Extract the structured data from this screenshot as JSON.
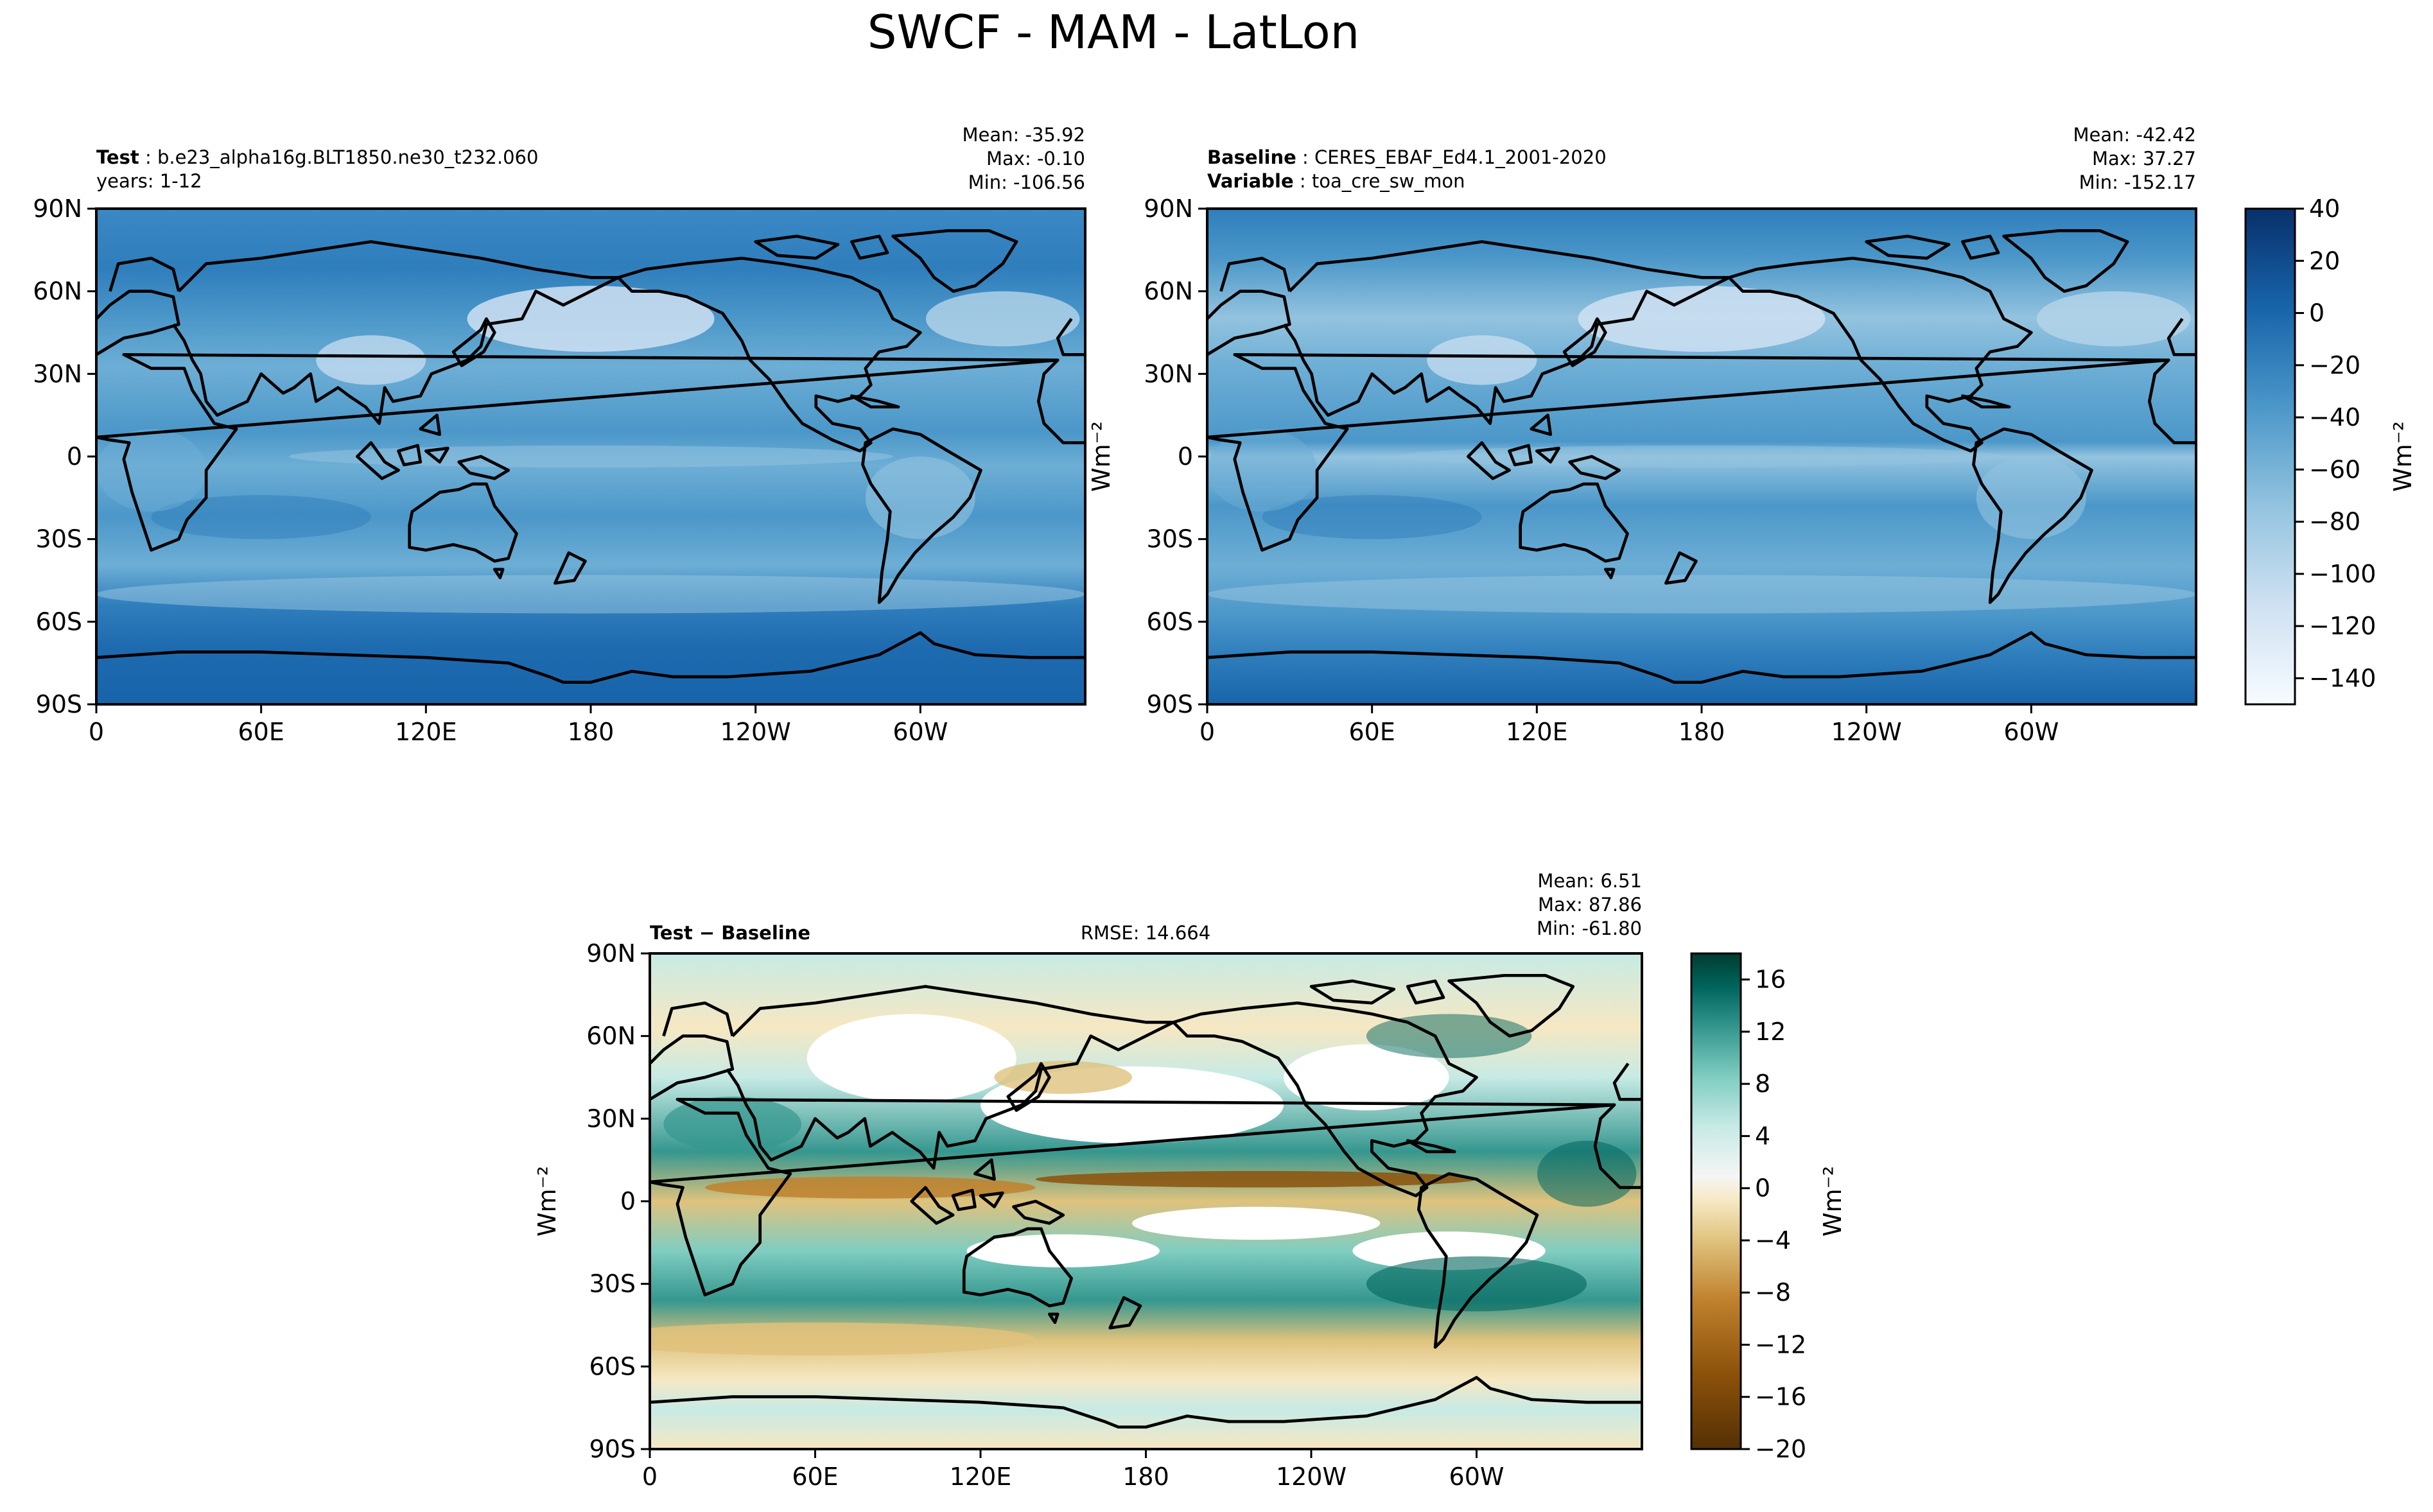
{
  "figure_title": "SWCF - MAM - LatLon",
  "colors": {
    "blues": [
      "#f7fbff",
      "#e3eef9",
      "#cfe1f2",
      "#b5d4e9",
      "#93c3df",
      "#6daed5",
      "#4b97c9",
      "#2f7ebc",
      "#1864aa",
      "#0a4a90",
      "#08306b"
    ],
    "diverging": [
      "#543005",
      "#8c510a",
      "#bf812d",
      "#dfc27d",
      "#f6e8c3",
      "#f5f5f5",
      "#c7eae5",
      "#80cdc1",
      "#35978f",
      "#01665e",
      "#003c30"
    ],
    "land_outline": "#000000"
  },
  "chart_data": [
    {
      "id": "test",
      "type": "heatmap",
      "subtitle_label": "Test",
      "subtitle_value": "b.e23_alpha16g.BLT1850.ne30_t232.060",
      "subtitle_line2": "years: 1-12",
      "stats": {
        "mean": "Mean: -35.92",
        "max": "Max: -0.10",
        "min": "Min: -106.56"
      },
      "xticks": [
        "0",
        "60E",
        "120E",
        "180",
        "120W",
        "60W"
      ],
      "yticks": [
        "90N",
        "60N",
        "30N",
        "0",
        "30S",
        "60S",
        "90S"
      ],
      "xlim": [
        0,
        360
      ],
      "ylim": [
        -90,
        90
      ],
      "units": "Wm⁻²"
    },
    {
      "id": "baseline",
      "type": "heatmap",
      "subtitle_label": "Baseline",
      "subtitle_value": "CERES_EBAF_Ed4.1_2001-2020",
      "subtitle_label2": "Variable",
      "subtitle_value2": "toa_cre_sw_mon",
      "stats": {
        "mean": "Mean: -42.42",
        "max": "Max: 37.27",
        "min": "Min: -152.17"
      },
      "xticks": [
        "0",
        "60E",
        "120E",
        "180",
        "120W",
        "60W"
      ],
      "yticks": [
        "90N",
        "60N",
        "30N",
        "0",
        "30S",
        "60S",
        "90S"
      ],
      "xlim": [
        0,
        360
      ],
      "ylim": [
        -90,
        90
      ],
      "ylabel": "Wm⁻²",
      "colorbar": {
        "ticks": [
          "40",
          "20",
          "0",
          "−20",
          "−40",
          "−60",
          "−80",
          "−100",
          "−120",
          "−140"
        ],
        "range": [
          -150,
          40
        ],
        "label": "Wm⁻²"
      }
    },
    {
      "id": "diff",
      "type": "heatmap",
      "subtitle_label": "Test − Baseline",
      "rmse": "RMSE: 14.664",
      "stats": {
        "mean": "Mean:  6.51",
        "max": "Max: 87.86",
        "min": "Min: -61.80"
      },
      "xticks": [
        "0",
        "60E",
        "120E",
        "180",
        "120W",
        "60W"
      ],
      "yticks": [
        "90N",
        "60N",
        "30N",
        "0",
        "30S",
        "60S",
        "90S"
      ],
      "xlim": [
        0,
        360
      ],
      "ylim": [
        -90,
        90
      ],
      "ylabel": "Wm⁻²",
      "colorbar": {
        "ticks": [
          "16",
          "12",
          "8",
          "4",
          "0",
          "−4",
          "−8",
          "−12",
          "−16",
          "−20"
        ],
        "range": [
          -20,
          18
        ],
        "label": "Wm⁻²"
      }
    }
  ]
}
